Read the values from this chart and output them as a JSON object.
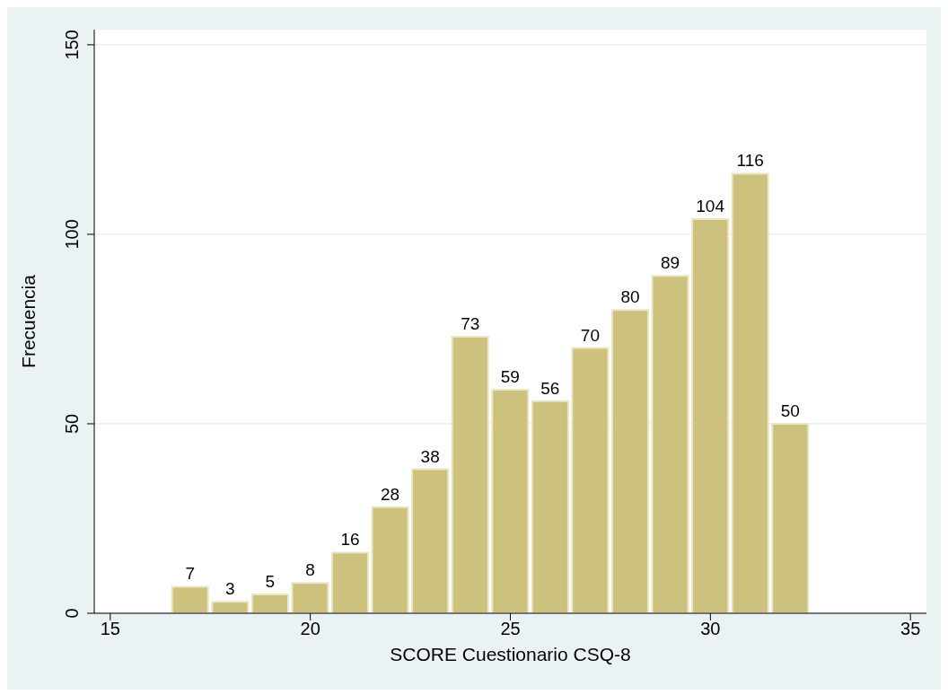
{
  "chart_data": {
    "type": "histogram",
    "xlabel": "SCORE Cuestionario CSQ-8",
    "ylabel": "Frecuencia",
    "bins": [
      16.5,
      17.5,
      18.5,
      19.5,
      20.5,
      21.5,
      22.5,
      23.5,
      24.5,
      25.5,
      26.5,
      27.5,
      28.5,
      29.5,
      30.5,
      31.5,
      32.5
    ],
    "values": [
      7,
      3,
      5,
      8,
      16,
      28,
      38,
      73,
      59,
      56,
      70,
      80,
      89,
      104,
      116,
      50
    ],
    "color": "#cdc17e",
    "data_labels": true,
    "grid": "y",
    "xlim": [
      14.6,
      35.4
    ],
    "xticks": [
      15,
      20,
      25,
      30,
      35
    ],
    "ylim": [
      0,
      154
    ],
    "yticks": [
      0,
      50,
      100,
      150
    ]
  }
}
